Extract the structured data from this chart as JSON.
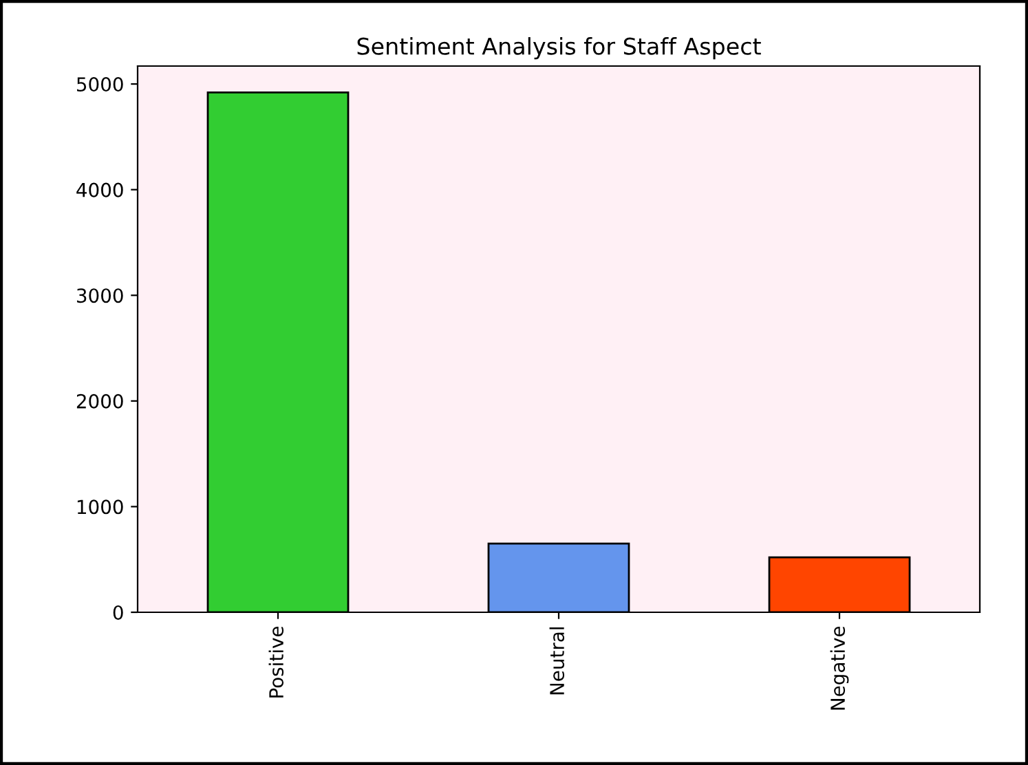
{
  "chart_data": {
    "type": "bar",
    "title": "Sentiment Analysis for Staff Aspect",
    "categories": [
      "Positive",
      "Neutral",
      "Negative"
    ],
    "values": [
      4920,
      650,
      520
    ],
    "colors": [
      "#32cd32",
      "#6495ed",
      "#ff4500"
    ],
    "ylim": [
      0,
      5170
    ],
    "yticks": [
      0,
      1000,
      2000,
      3000,
      4000,
      5000
    ],
    "grid": false,
    "legend": false
  }
}
